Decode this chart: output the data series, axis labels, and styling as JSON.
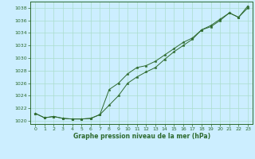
{
  "title": "Graphe pression niveau de la mer (hPa)",
  "bg_color": "#cceeff",
  "grid_color": "#aaddcc",
  "line_color": "#2d6a2d",
  "marker_color": "#2d6a2d",
  "ylim": [
    1019.5,
    1039
  ],
  "xlim": [
    -0.5,
    23.5
  ],
  "yticks": [
    1020,
    1022,
    1024,
    1026,
    1028,
    1030,
    1032,
    1034,
    1036,
    1038
  ],
  "xticks": [
    0,
    1,
    2,
    3,
    4,
    5,
    6,
    7,
    8,
    9,
    10,
    11,
    12,
    13,
    14,
    15,
    16,
    17,
    18,
    19,
    20,
    21,
    22,
    23
  ],
  "series1": [
    1021.2,
    1020.5,
    1020.7,
    1020.4,
    1020.3,
    1020.3,
    1020.4,
    1021.0,
    1022.5,
    1024.0,
    1026.0,
    1027.0,
    1027.8,
    1028.5,
    1029.8,
    1031.0,
    1032.0,
    1033.0,
    1034.5,
    1035.0,
    1036.0,
    1037.2,
    1036.5,
    1038.3
  ],
  "series2": [
    1021.2,
    1020.5,
    1020.7,
    1020.4,
    1020.3,
    1020.3,
    1020.4,
    1021.0,
    1025.0,
    1026.0,
    1027.5,
    1028.5,
    1028.8,
    1029.5,
    1030.5,
    1031.5,
    1032.5,
    1033.2,
    1034.5,
    1035.2,
    1036.2,
    1037.2,
    1036.5,
    1038.0
  ]
}
